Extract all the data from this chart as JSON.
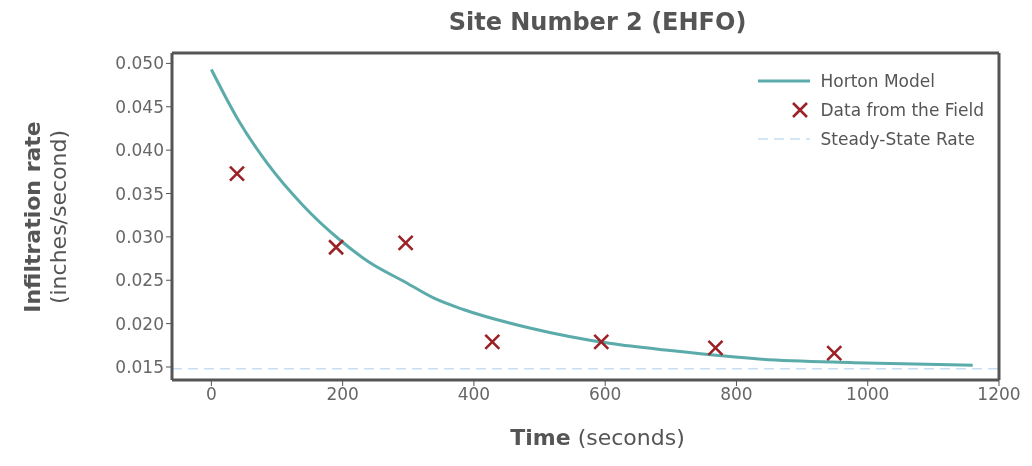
{
  "chart_data": {
    "type": "line",
    "title": "Site Number 2 (EHFO)",
    "xlabel": "Time (seconds)",
    "ylabel": "Infiltration rate (inches/second)",
    "xlim": [
      -60,
      1200
    ],
    "xticks": [
      0,
      200,
      400,
      600,
      800,
      1000,
      1200
    ],
    "ylim": [
      0.0135,
      0.0512
    ],
    "yticks": [
      0.015,
      {
        "value": 0.02,
        "label": "0.020"
      },
      0.025,
      {
        "value": 0.03,
        "label": "0.030"
      },
      0.035,
      {
        "value": 0.04,
        "label": "0.040"
      },
      0.045,
      {
        "value": 0.05,
        "label": "0.050"
      }
    ],
    "legend": "top right",
    "series": [
      {
        "name": "Horton Model",
        "color": "#5aabaa",
        "marker": "none",
        "line_style": "solid",
        "x": [
          0,
          40,
          85,
          140,
          195,
          240,
          295,
          340,
          385,
          485,
          609,
          699,
          838,
          979,
          1160
        ],
        "values": [
          0.0493,
          0.0436,
          0.0385,
          0.0336,
          0.0297,
          0.0271,
          0.0248,
          0.0229,
          0.0216,
          0.0195,
          0.0177,
          0.0169,
          0.0159,
          0.0155,
          0.0152
        ]
      },
      {
        "name": "Data from the Field",
        "type": "scatter",
        "color": "#9b2226",
        "marker": "cross",
        "x": [
          39,
          190,
          296,
          428,
          594,
          768,
          949
        ],
        "values": [
          0.0373,
          0.0288,
          0.0293,
          0.0179,
          0.0179,
          0.0172,
          0.0166
        ]
      }
    ],
    "ref_lines": [
      {
        "axis": "y",
        "value": 0.0148,
        "label": "Steady-State Rate",
        "color": "#c6dff5",
        "line_style": "dashed"
      }
    ]
  }
}
